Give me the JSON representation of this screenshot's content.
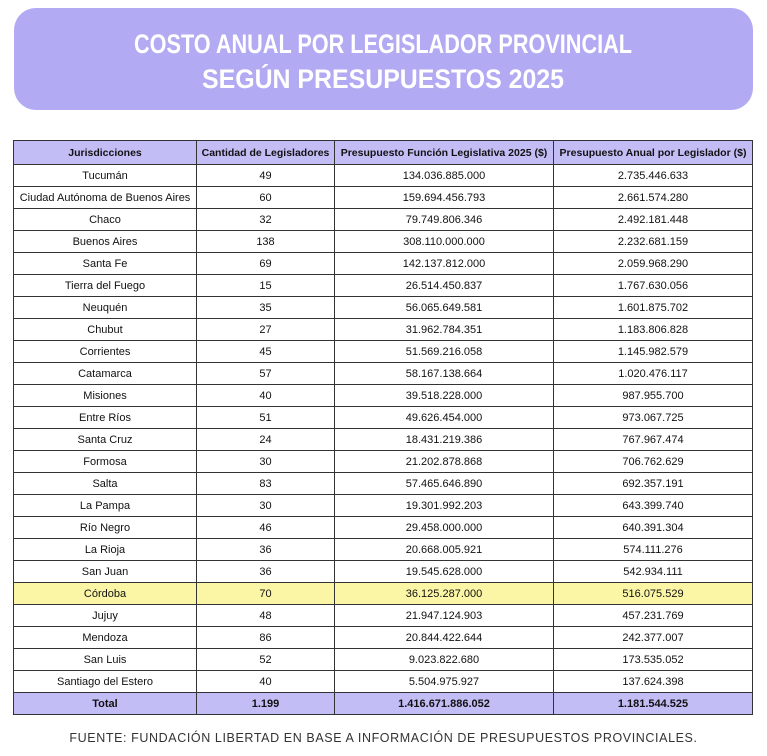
{
  "header": {
    "title_line1": "COSTO ANUAL POR LEGISLADOR PROVINCIAL",
    "title_line2": "SEGÚN PRESUPUESTOS 2025"
  },
  "table": {
    "columns": [
      "Jurisdicciones",
      "Cantidad de Legisladores",
      "Presupuesto Función Legislativa 2025 ($)",
      "Presupuesto Anual por Legislador ($)"
    ],
    "rows": [
      [
        "Tucumán",
        "49",
        "134.036.885.000",
        "2.735.446.633"
      ],
      [
        "Ciudad Autónoma de Buenos Aires",
        "60",
        "159.694.456.793",
        "2.661.574.280"
      ],
      [
        "Chaco",
        "32",
        "79.749.806.346",
        "2.492.181.448"
      ],
      [
        "Buenos Aires",
        "138",
        "308.110.000.000",
        "2.232.681.159"
      ],
      [
        "Santa Fe",
        "69",
        "142.137.812.000",
        "2.059.968.290"
      ],
      [
        "Tierra del Fuego",
        "15",
        "26.514.450.837",
        "1.767.630.056"
      ],
      [
        "Neuquén",
        "35",
        "56.065.649.581",
        "1.601.875.702"
      ],
      [
        "Chubut",
        "27",
        "31.962.784.351",
        "1.183.806.828"
      ],
      [
        "Corrientes",
        "45",
        "51.569.216.058",
        "1.145.982.579"
      ],
      [
        "Catamarca",
        "57",
        "58.167.138.664",
        "1.020.476.117"
      ],
      [
        "Misiones",
        "40",
        "39.518.228.000",
        "987.955.700"
      ],
      [
        "Entre Ríos",
        "51",
        "49.626.454.000",
        "973.067.725"
      ],
      [
        "Santa Cruz",
        "24",
        "18.431.219.386",
        "767.967.474"
      ],
      [
        "Formosa",
        "30",
        "21.202.878.868",
        "706.762.629"
      ],
      [
        "Salta",
        "83",
        "57.465.646.890",
        "692.357.191"
      ],
      [
        "La Pampa",
        "30",
        "19.301.992.203",
        "643.399.740"
      ],
      [
        "Río Negro",
        "46",
        "29.458.000.000",
        "640.391.304"
      ],
      [
        "La Rioja",
        "36",
        "20.668.005.921",
        "574.111.276"
      ],
      [
        "San Juan",
        "36",
        "19.545.628.000",
        "542.934.111"
      ],
      [
        "Córdoba",
        "70",
        "36.125.287.000",
        "516.075.529"
      ],
      [
        "Jujuy",
        "48",
        "21.947.124.903",
        "457.231.769"
      ],
      [
        "Mendoza",
        "86",
        "20.844.422.644",
        "242.377.007"
      ],
      [
        "San Luis",
        "52",
        "9.023.822.680",
        "173.535.052"
      ],
      [
        "Santiago del Estero",
        "40",
        "5.504.975.927",
        "137.624.398"
      ]
    ],
    "total": [
      "Total",
      "1.199",
      "1.416.671.886.052",
      "1.181.544.525"
    ]
  },
  "footer": {
    "source": "FUENTE: FUNDACIÓN LIBERTAD EN BASE A INFORMACIÓN DE PRESUPUESTOS PROVINCIALES."
  }
}
